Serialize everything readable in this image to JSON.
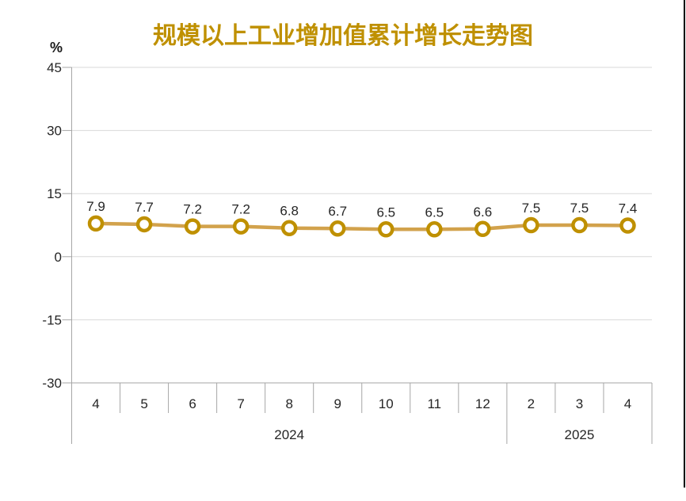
{
  "chart_data": {
    "type": "line",
    "title": "规模以上工业增加值累计增长走势图",
    "unit_label": "%",
    "categories": [
      "4",
      "5",
      "6",
      "7",
      "8",
      "9",
      "10",
      "11",
      "12",
      "2",
      "3",
      "4"
    ],
    "values": [
      7.9,
      7.7,
      7.2,
      7.2,
      6.8,
      6.7,
      6.5,
      6.5,
      6.6,
      7.5,
      7.5,
      7.4
    ],
    "data_labels": [
      "7.9",
      "7.7",
      "7.2",
      "7.2",
      "6.8",
      "6.7",
      "6.5",
      "6.5",
      "6.6",
      "7.5",
      "7.5",
      "7.4"
    ],
    "year_groups": [
      {
        "label": "2024",
        "start": 0,
        "count": 9
      },
      {
        "label": "2025",
        "start": 9,
        "count": 3
      }
    ],
    "ylim": [
      -30,
      45
    ],
    "y_ticks": [
      45,
      30,
      15,
      0,
      -15,
      -30
    ],
    "grid": true,
    "legend": "none",
    "colors": {
      "title": "#BF9000",
      "line": "#D2A24C",
      "marker_stroke": "#BF9000",
      "marker_fill": "#FFFFFF",
      "gridline": "#D9D9D9",
      "axis": "#A6A6A6",
      "text": "#262626",
      "page_border": "#000000"
    }
  }
}
